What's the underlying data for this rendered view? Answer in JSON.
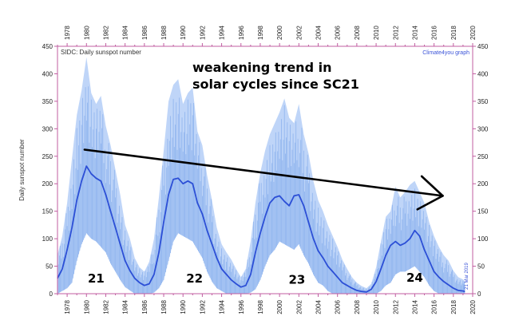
{
  "chart_data": {
    "type": "line",
    "source_label": "SIDC: Daily sunspot number",
    "credit": "Climate4you graph",
    "date_stamp": "21 Mar 2019",
    "ylabel": "Daily sunspot number",
    "xlim": [
      1977,
      2020
    ],
    "ylim": [
      0,
      450
    ],
    "x_ticks": [
      1978,
      1980,
      1982,
      1984,
      1986,
      1988,
      1990,
      1992,
      1994,
      1996,
      1998,
      2000,
      2002,
      2004,
      2006,
      2008,
      2010,
      2012,
      2014,
      2016,
      2018,
      2020
    ],
    "y_ticks": [
      0,
      50,
      100,
      150,
      200,
      250,
      300,
      350,
      400,
      450
    ],
    "annotation": {
      "line1": "weakening trend in",
      "line2": "solar cycles since SC21"
    },
    "trend_arrow": {
      "x": [
        1979.8,
        2016.9
      ],
      "y": [
        262,
        178
      ]
    },
    "cycle_labels": [
      {
        "label": "21",
        "x": 1981.0,
        "y": 20
      },
      {
        "label": "22",
        "x": 1991.2,
        "y": 20
      },
      {
        "label": "23",
        "x": 2001.8,
        "y": 18
      },
      {
        "label": "24",
        "x": 2014.0,
        "y": 22
      }
    ],
    "series": [
      {
        "name": "Daily sunspot number",
        "style": "daily",
        "color": "#a9c7f5",
        "x": [
          1977.0,
          1977.5,
          1978.0,
          1978.5,
          1979.0,
          1979.5,
          1980.0,
          1980.5,
          1981.0,
          1981.5,
          1982.0,
          1982.5,
          1983.0,
          1983.5,
          1984.0,
          1984.5,
          1985.0,
          1985.5,
          1986.0,
          1986.5,
          1987.0,
          1987.5,
          1988.0,
          1988.5,
          1989.0,
          1989.5,
          1990.0,
          1990.5,
          1991.0,
          1991.5,
          1992.0,
          1992.5,
          1993.0,
          1993.5,
          1994.0,
          1994.5,
          1995.0,
          1995.5,
          1996.0,
          1996.5,
          1997.0,
          1997.5,
          1998.0,
          1998.5,
          1999.0,
          1999.5,
          2000.0,
          2000.5,
          2001.0,
          2001.5,
          2002.0,
          2002.5,
          2003.0,
          2003.5,
          2004.0,
          2004.5,
          2005.0,
          2005.5,
          2006.0,
          2006.5,
          2007.0,
          2007.5,
          2008.0,
          2008.5,
          2009.0,
          2009.5,
          2010.0,
          2010.5,
          2011.0,
          2011.5,
          2012.0,
          2012.5,
          2013.0,
          2013.5,
          2014.0,
          2014.5,
          2015.0,
          2015.5,
          2016.0,
          2016.5,
          2017.0,
          2017.5,
          2018.0,
          2018.5,
          2019.0,
          2019.2
        ],
        "y_high": [
          70,
          105,
          165,
          245,
          325,
          370,
          430,
          365,
          345,
          360,
          305,
          270,
          225,
          180,
          125,
          100,
          65,
          48,
          40,
          58,
          100,
          175,
          260,
          350,
          380,
          390,
          345,
          365,
          375,
          295,
          270,
          215,
          170,
          120,
          90,
          75,
          62,
          45,
          30,
          45,
          95,
          165,
          220,
          260,
          290,
          310,
          330,
          355,
          320,
          310,
          345,
          290,
          255,
          205,
          170,
          150,
          125,
          105,
          85,
          62,
          45,
          30,
          20,
          14,
          10,
          18,
          48,
          95,
          140,
          150,
          195,
          175,
          185,
          198,
          205,
          185,
          165,
          130,
          105,
          85,
          70,
          60,
          42,
          30,
          26,
          22
        ],
        "y_low": [
          0,
          5,
          10,
          20,
          60,
          90,
          110,
          100,
          95,
          85,
          75,
          55,
          40,
          25,
          12,
          6,
          0,
          0,
          0,
          0,
          2,
          10,
          25,
          60,
          95,
          110,
          105,
          100,
          95,
          80,
          65,
          40,
          22,
          10,
          5,
          0,
          0,
          0,
          0,
          0,
          2,
          8,
          25,
          50,
          70,
          80,
          95,
          90,
          85,
          80,
          90,
          70,
          55,
          35,
          20,
          15,
          5,
          0,
          0,
          0,
          0,
          0,
          0,
          0,
          0,
          0,
          0,
          5,
          15,
          20,
          35,
          40,
          40,
          45,
          50,
          40,
          30,
          15,
          5,
          0,
          0,
          0,
          0,
          0,
          0,
          0
        ]
      },
      {
        "name": "Running mean",
        "style": "smoothed",
        "color": "#2c4fd6",
        "x": [
          1977.0,
          1977.5,
          1978.0,
          1978.5,
          1979.0,
          1979.5,
          1980.0,
          1980.5,
          1981.0,
          1981.5,
          1982.0,
          1982.5,
          1983.0,
          1983.5,
          1984.0,
          1984.5,
          1985.0,
          1985.5,
          1986.0,
          1986.5,
          1987.0,
          1987.5,
          1988.0,
          1988.5,
          1989.0,
          1989.5,
          1990.0,
          1990.5,
          1991.0,
          1991.5,
          1992.0,
          1992.5,
          1993.0,
          1993.5,
          1994.0,
          1994.5,
          1995.0,
          1995.5,
          1996.0,
          1996.5,
          1997.0,
          1997.5,
          1998.0,
          1998.5,
          1999.0,
          1999.5,
          2000.0,
          2000.5,
          2001.0,
          2001.5,
          2002.0,
          2002.5,
          2003.0,
          2003.5,
          2004.0,
          2004.5,
          2005.0,
          2005.5,
          2006.0,
          2006.5,
          2007.0,
          2007.5,
          2008.0,
          2008.5,
          2009.0,
          2009.5,
          2010.0,
          2010.5,
          2011.0,
          2011.5,
          2012.0,
          2012.5,
          2013.0,
          2013.5,
          2014.0,
          2014.5,
          2015.0,
          2015.5,
          2016.0,
          2016.5,
          2017.0,
          2017.5,
          2018.0,
          2018.5,
          2019.0,
          2019.2
        ],
        "y": [
          28,
          45,
          80,
          120,
          170,
          205,
          232,
          218,
          210,
          205,
          180,
          150,
          120,
          90,
          60,
          42,
          28,
          20,
          15,
          18,
          35,
          75,
          130,
          180,
          208,
          210,
          200,
          205,
          200,
          165,
          145,
          115,
          90,
          65,
          45,
          35,
          25,
          18,
          12,
          15,
          35,
          75,
          110,
          140,
          165,
          175,
          178,
          168,
          160,
          178,
          180,
          160,
          130,
          100,
          78,
          65,
          50,
          40,
          30,
          20,
          15,
          10,
          6,
          4,
          3,
          8,
          22,
          45,
          70,
          88,
          95,
          88,
          92,
          100,
          115,
          105,
          80,
          60,
          40,
          30,
          22,
          16,
          10,
          6,
          5,
          4
        ]
      }
    ]
  }
}
